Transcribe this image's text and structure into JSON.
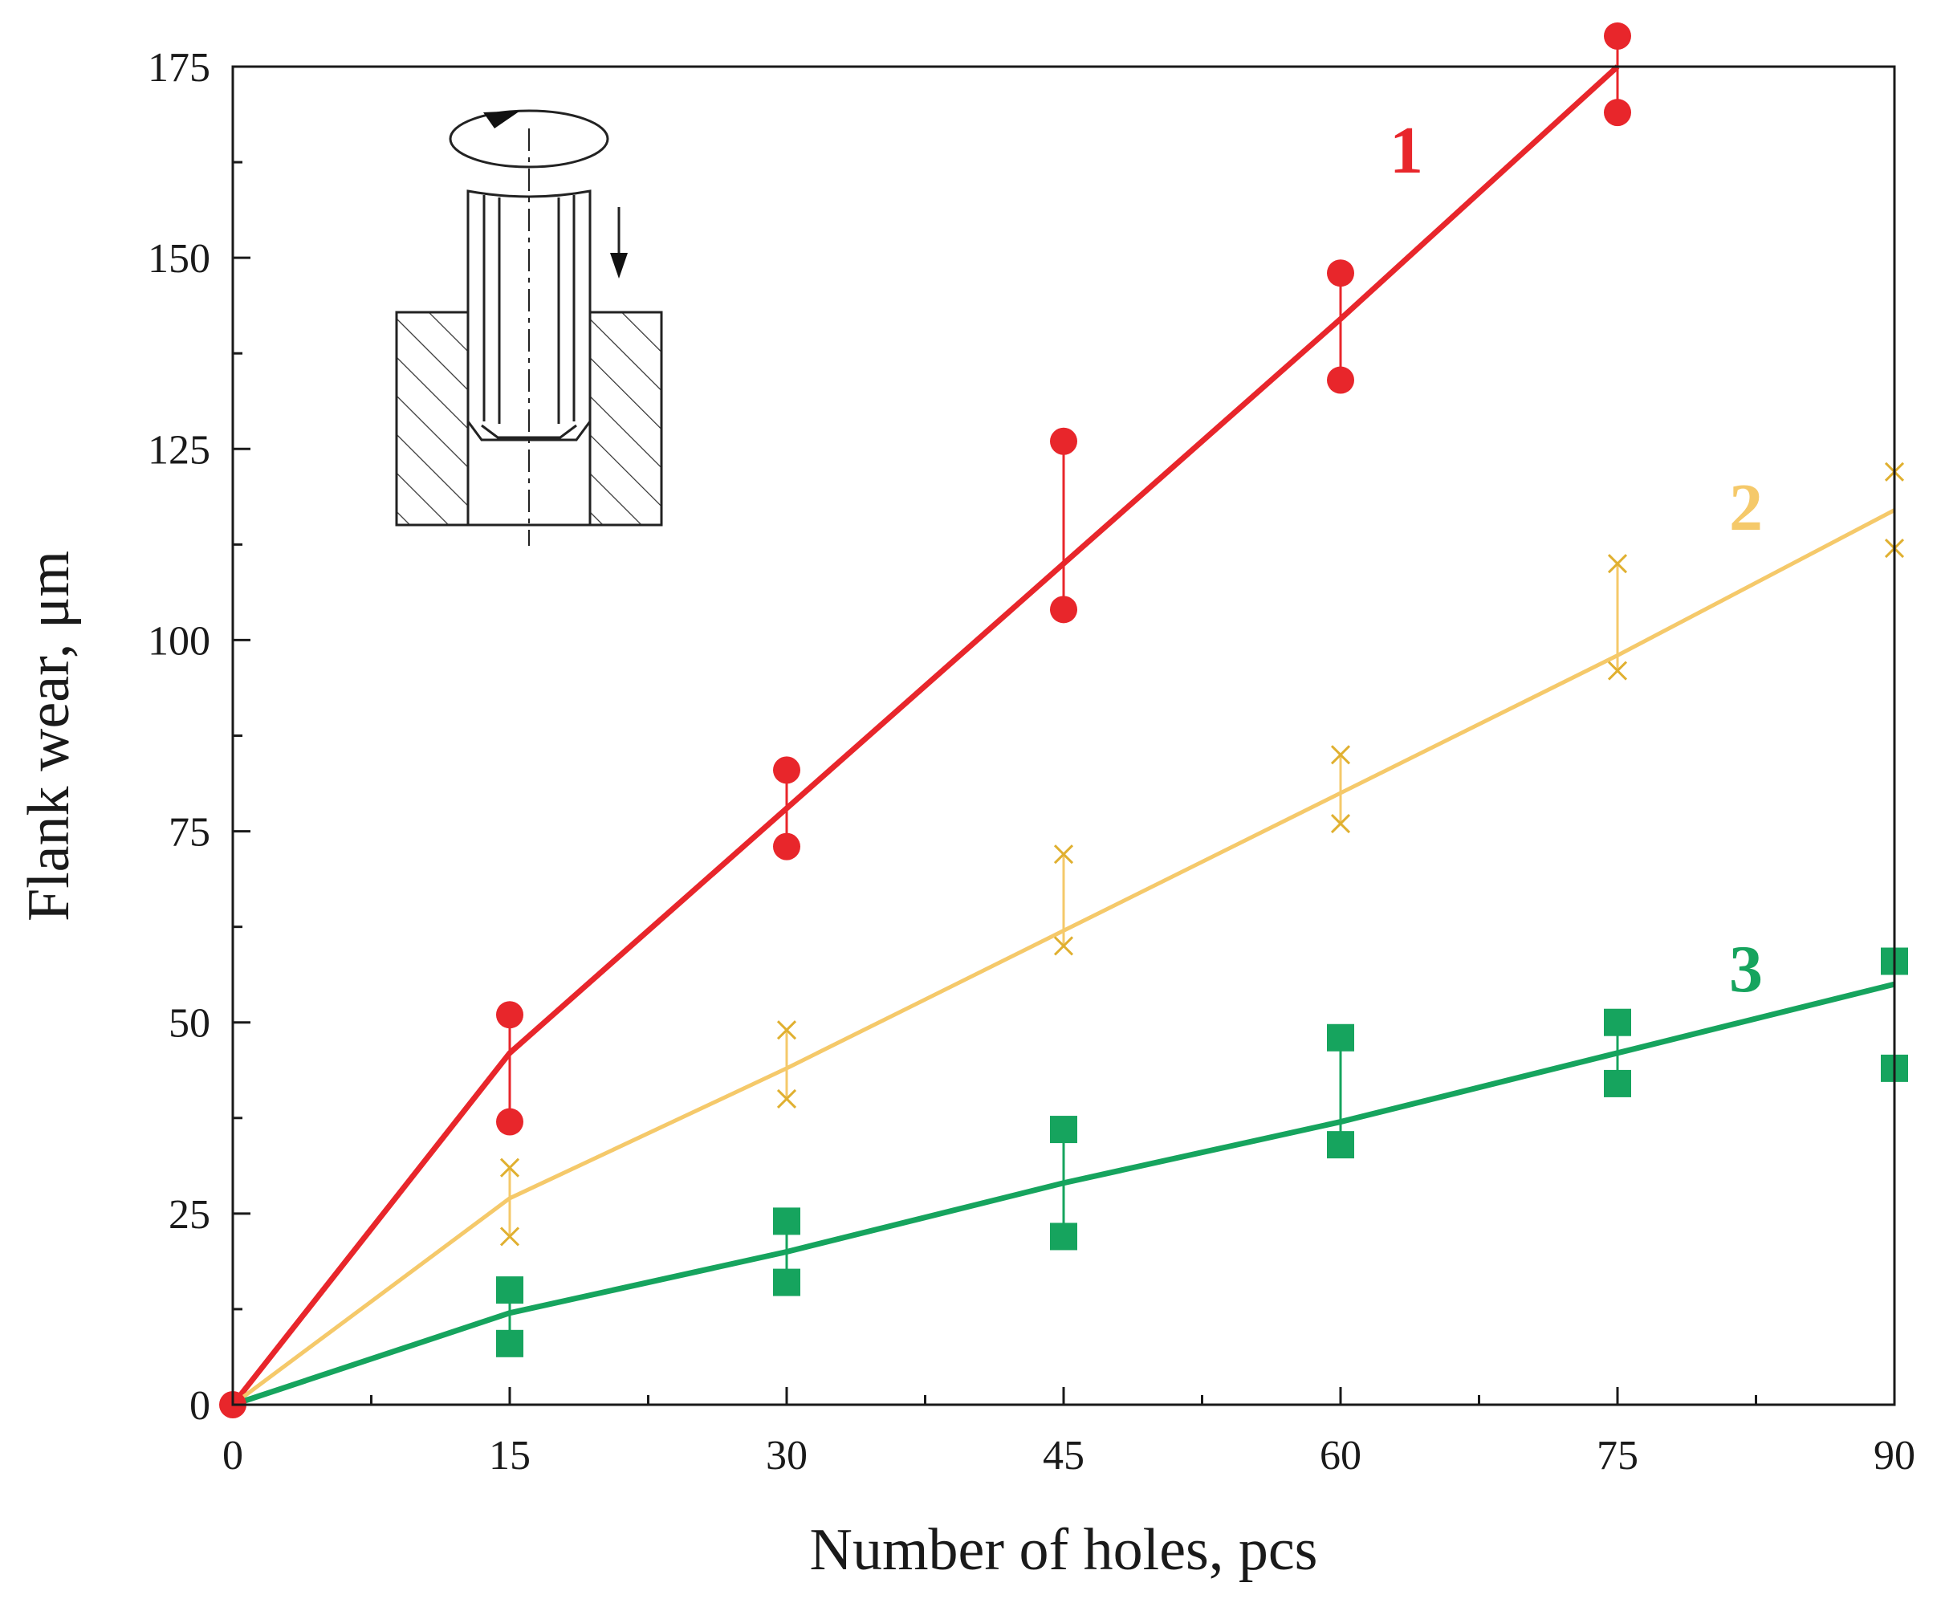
{
  "chart_data": {
    "type": "line",
    "title": "",
    "xlabel": "Number of holes, pcs",
    "ylabel": "Flank wear,  μm",
    "xlim": [
      0,
      90
    ],
    "ylim": [
      0,
      175
    ],
    "x_ticks": [
      0,
      15,
      30,
      45,
      60,
      75,
      90
    ],
    "x_tick_labels": [
      "0",
      "15",
      "30",
      "45",
      "60",
      "75",
      "90"
    ],
    "y_ticks": [
      0,
      25,
      50,
      75,
      100,
      125,
      150,
      175
    ],
    "y_tick_labels": [
      "0",
      "25",
      "50",
      "75",
      "100",
      "125",
      "150",
      "175"
    ],
    "x_minor_step": 7.5,
    "y_minor_step": 12.5,
    "grid": false,
    "series": [
      {
        "name": "1",
        "color": "#e8262b",
        "marker": "circle",
        "x": [
          0,
          15,
          30,
          45,
          60,
          75
        ],
        "mean": [
          0,
          46,
          78,
          110,
          142,
          175
        ],
        "upper": [
          0,
          51,
          83,
          126,
          148,
          179
        ],
        "lower": [
          0,
          37,
          73,
          104,
          134,
          169
        ]
      },
      {
        "name": "2",
        "color": "#f5c96a",
        "marker": "x",
        "x": [
          0,
          15,
          30,
          45,
          60,
          75,
          90
        ],
        "mean": [
          0,
          27,
          44,
          62,
          80,
          98,
          117
        ],
        "upper": [
          0,
          31,
          49,
          72,
          85,
          110,
          122
        ],
        "lower": [
          0,
          22,
          40,
          60,
          76,
          96,
          112
        ]
      },
      {
        "name": "3",
        "color": "#16a45e",
        "marker": "square",
        "x": [
          0,
          15,
          30,
          45,
          60,
          75,
          90
        ],
        "mean": [
          0,
          12,
          20,
          29,
          37,
          46,
          55
        ],
        "upper": [
          0,
          15,
          24,
          36,
          48,
          50,
          58
        ],
        "lower": [
          0,
          8,
          16,
          22,
          34,
          42,
          44
        ]
      }
    ]
  },
  "colors": {
    "axis": "#1a1a1a",
    "inset": "#222222"
  }
}
